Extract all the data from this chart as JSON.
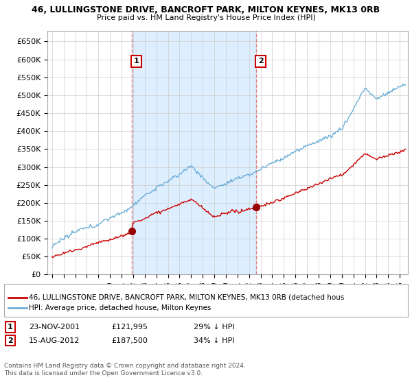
{
  "title": "46, LULLINGSTONE DRIVE, BANCROFT PARK, MILTON KEYNES, MK13 0RB",
  "subtitle": "Price paid vs. HM Land Registry's House Price Index (HPI)",
  "ylabel_ticks": [
    "£0",
    "£50K",
    "£100K",
    "£150K",
    "£200K",
    "£250K",
    "£300K",
    "£350K",
    "£400K",
    "£450K",
    "£500K",
    "£550K",
    "£600K",
    "£650K"
  ],
  "ylim": [
    0,
    680000
  ],
  "ytick_vals": [
    0,
    50000,
    100000,
    150000,
    200000,
    250000,
    300000,
    350000,
    400000,
    450000,
    500000,
    550000,
    600000,
    650000
  ],
  "sale1_date": 2001.9,
  "sale1_price": 121995,
  "sale2_date": 2012.62,
  "sale2_price": 187500,
  "hpi_color": "#6baed6",
  "price_color": "#cc0000",
  "sale_marker_color": "#990000",
  "vline_color": "#e08080",
  "shade_color": "#ddeeff",
  "background_color": "#ffffff",
  "grid_color": "#cccccc",
  "legend_line1": "46, LULLINGSTONE DRIVE, BANCROFT PARK, MILTON KEYNES, MK13 0RB (detached hous",
  "legend_line2": "HPI: Average price, detached house, Milton Keynes",
  "annotation1_text": "1",
  "annotation2_text": "2",
  "note1_date": "23-NOV-2001",
  "note1_price": "£121,995",
  "note1_hpi": "29% ↓ HPI",
  "note2_date": "15-AUG-2012",
  "note2_price": "£187,500",
  "note2_hpi": "34% ↓ HPI",
  "footer": "Contains HM Land Registry data © Crown copyright and database right 2024.\nThis data is licensed under the Open Government Licence v3.0.",
  "xlim_left": 1994.6,
  "xlim_right": 2025.7
}
